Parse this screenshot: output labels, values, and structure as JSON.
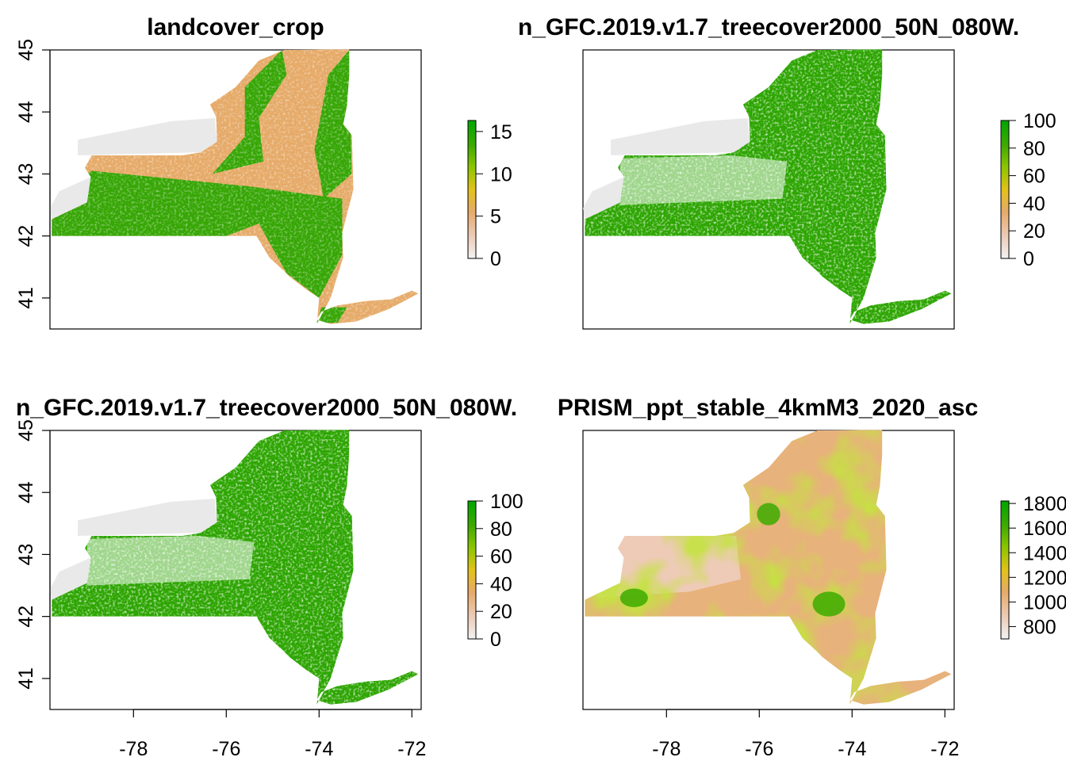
{
  "chart_data": [
    {
      "type": "heatmap",
      "title": "landcover_crop",
      "xlim": [
        -79.8,
        -71.8
      ],
      "ylim": [
        40.5,
        45.0
      ],
      "x_ticks": [],
      "y_ticks": [
        41,
        42,
        43,
        44,
        45
      ],
      "y_tick_labels": [
        "41",
        "42",
        "43",
        "44",
        "45"
      ],
      "legend": {
        "min": 0,
        "max": 16.3,
        "ticks": [
          0,
          5,
          10,
          15
        ],
        "tick_labels": [
          "0",
          "5",
          "10",
          "15"
        ]
      },
      "dominant": "landcover"
    },
    {
      "type": "heatmap",
      "title": "n_GFC.2019.v1.7_treecover2000_50N_080W.",
      "xlim": [
        -79.8,
        -71.8
      ],
      "ylim": [
        40.5,
        45.0
      ],
      "x_ticks": [],
      "y_ticks": [],
      "legend": {
        "min": 0,
        "max": 100,
        "ticks": [
          0,
          20,
          40,
          60,
          80,
          100
        ],
        "tick_labels": [
          "0",
          "20",
          "40",
          "60",
          "80",
          "100"
        ]
      },
      "dominant": "treecover"
    },
    {
      "type": "heatmap",
      "title": "n_GFC.2019.v1.7_treecover2000_50N_080W.",
      "xlim": [
        -79.8,
        -71.8
      ],
      "ylim": [
        40.5,
        45.0
      ],
      "x_ticks": [
        -78,
        -76,
        -74,
        -72
      ],
      "x_tick_labels": [
        "-78",
        "-76",
        "-74",
        "-72"
      ],
      "y_ticks": [
        41,
        42,
        43,
        44,
        45
      ],
      "y_tick_labels": [
        "41",
        "42",
        "43",
        "44",
        "45"
      ],
      "legend": {
        "min": 0,
        "max": 100,
        "ticks": [
          0,
          20,
          40,
          60,
          80,
          100
        ],
        "tick_labels": [
          "0",
          "20",
          "40",
          "60",
          "80",
          "100"
        ]
      },
      "dominant": "treecover"
    },
    {
      "type": "heatmap",
      "title": "PRISM_ppt_stable_4kmM3_2020_asc",
      "xlim": [
        -79.8,
        -71.8
      ],
      "ylim": [
        40.5,
        45.0
      ],
      "x_ticks": [
        -78,
        -76,
        -74,
        -72
      ],
      "x_tick_labels": [
        "-78",
        "-76",
        "-74",
        "-72"
      ],
      "y_ticks": [],
      "legend": {
        "min": 700,
        "max": 1820,
        "ticks": [
          800,
          1000,
          1200,
          1400,
          1600,
          1800
        ],
        "tick_labels": [
          "800",
          "1000",
          "1200",
          "1400",
          "1600",
          "1800"
        ]
      },
      "dominant": "precip"
    }
  ],
  "colors": {
    "scale": [
      "#f2f2f2",
      "#ecc7b0",
      "#e6aa68",
      "#e3c21a",
      "#8dc500",
      "#3faa00",
      "#00a600"
    ],
    "lakes": "#e9e9e9",
    "crop": "#e6aa68",
    "forest": "#2ca500",
    "axis": "#000000"
  }
}
